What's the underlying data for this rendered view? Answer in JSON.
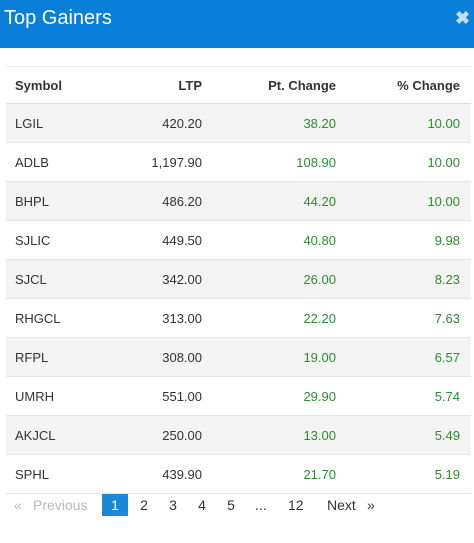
{
  "widget": {
    "title": "Top Gainers",
    "close_glyph": "✖"
  },
  "colors": {
    "header_bg": "#0a7fd9",
    "positive": "#2a8f2a",
    "current_page": "#1e88d8"
  },
  "table": {
    "columns": [
      "Symbol",
      "LTP",
      "Pt. Change",
      "% Change"
    ],
    "rows": [
      [
        "LGIL",
        "420.20",
        "38.20",
        "10.00"
      ],
      [
        "ADLB",
        "1,197.90",
        "108.90",
        "10.00"
      ],
      [
        "BHPL",
        "486.20",
        "44.20",
        "10.00"
      ],
      [
        "SJLIC",
        "449.50",
        "40.80",
        "9.98"
      ],
      [
        "SJCL",
        "342.00",
        "26.00",
        "8.23"
      ],
      [
        "RHGCL",
        "313.00",
        "22.20",
        "7.63"
      ],
      [
        "RFPL",
        "308.00",
        "19.00",
        "6.57"
      ],
      [
        "UMRH",
        "551.00",
        "29.90",
        "5.74"
      ],
      [
        "AKJCL",
        "250.00",
        "13.00",
        "5.49"
      ],
      [
        "SPHL",
        "439.90",
        "21.70",
        "5.19"
      ]
    ]
  },
  "pagination": {
    "first_glyph": "«",
    "previous_label": "Previous",
    "pages": [
      "1",
      "2",
      "3",
      "4",
      "5"
    ],
    "ellipsis": "...",
    "last_page": "12",
    "next_label": "Next",
    "last_glyph": "»",
    "current": "1"
  }
}
